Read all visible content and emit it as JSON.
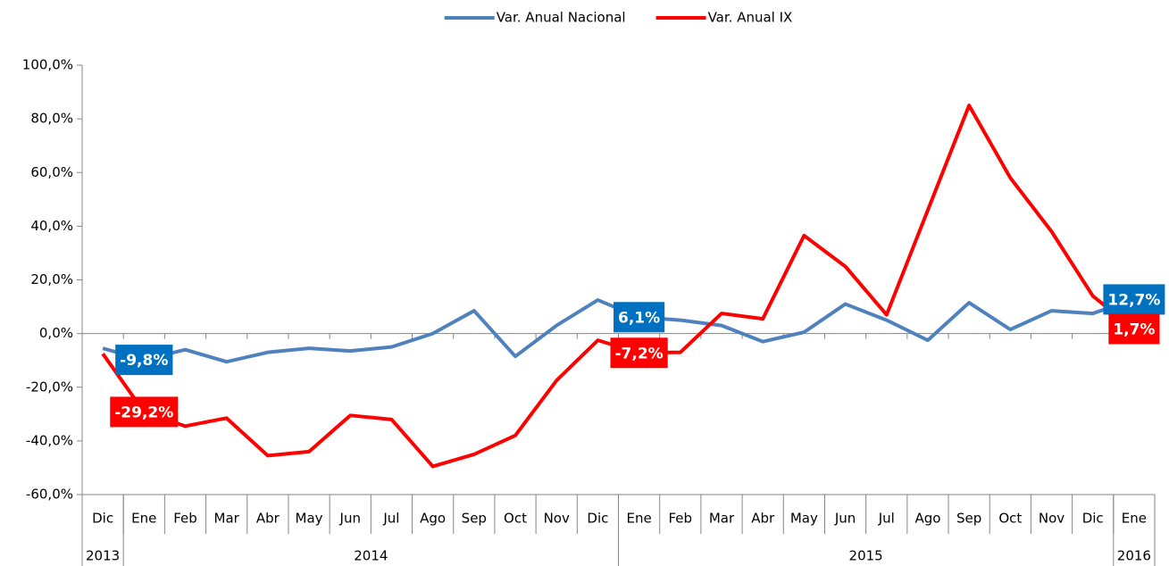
{
  "chart_data": {
    "type": "line",
    "categories": [
      "Dic",
      "Ene",
      "Feb",
      "Mar",
      "Abr",
      "May",
      "Jun",
      "Jul",
      "Ago",
      "Sep",
      "Oct",
      "Nov",
      "Dic",
      "Ene",
      "Feb",
      "Mar",
      "Abr",
      "May",
      "Jun",
      "Jul",
      "Ago",
      "Sep",
      "Oct",
      "Nov",
      "Dic",
      "Ene"
    ],
    "category_groups": [
      {
        "label": "2013",
        "count": 1
      },
      {
        "label": "2014",
        "count": 12
      },
      {
        "label": "2015",
        "count": 12
      },
      {
        "label": "2016",
        "count": 1
      }
    ],
    "series": [
      {
        "name": "Var. Anual Nacional",
        "color": "#4f81bd",
        "label_color": "#0070c0",
        "values": [
          -5.5,
          -9.8,
          -6,
          -10.5,
          -7,
          -5.5,
          -6.5,
          -5,
          0,
          8.5,
          -8.5,
          3,
          12.5,
          6.1,
          5,
          3,
          -3,
          0.5,
          11,
          5,
          -2.5,
          11.5,
          1.5,
          8.5,
          7.5,
          12.7
        ],
        "value_labels": [
          null,
          "-9,8%",
          null,
          null,
          null,
          null,
          null,
          null,
          null,
          null,
          null,
          null,
          null,
          "6,1%",
          null,
          null,
          null,
          null,
          null,
          null,
          null,
          null,
          null,
          null,
          null,
          "12,7%"
        ]
      },
      {
        "name": "Var. Anual IX",
        "color": "#ff0000",
        "label_color": "#ff0000",
        "values": [
          -7.5,
          -29.2,
          -34.5,
          -31.5,
          -45.5,
          -44,
          -30.5,
          -32,
          -49.5,
          -45,
          -38,
          -17.5,
          -2.5,
          -7.2,
          -7,
          7.5,
          5.5,
          36.5,
          25,
          7,
          46,
          85,
          58,
          38,
          14,
          1.7
        ],
        "value_labels": [
          null,
          "-29,2%",
          null,
          null,
          null,
          null,
          null,
          null,
          null,
          null,
          null,
          null,
          null,
          "-7,2%",
          null,
          null,
          null,
          null,
          null,
          null,
          null,
          null,
          null,
          null,
          null,
          "1,7%"
        ]
      }
    ],
    "ylim": [
      -60,
      100
    ],
    "yticks": [
      {
        "value": -60,
        "label": "-60,0%"
      },
      {
        "value": -40,
        "label": "-40,0%"
      },
      {
        "value": -20,
        "label": "-20,0%"
      },
      {
        "value": 0,
        "label": "0,0%"
      },
      {
        "value": 20,
        "label": "20,0%"
      },
      {
        "value": 40,
        "label": "40,0%"
      },
      {
        "value": 60,
        "label": "60,0%"
      },
      {
        "value": 80,
        "label": "80,0%"
      },
      {
        "value": 100,
        "label": "100,0%"
      }
    ],
    "legend": "top",
    "grid": false
  }
}
